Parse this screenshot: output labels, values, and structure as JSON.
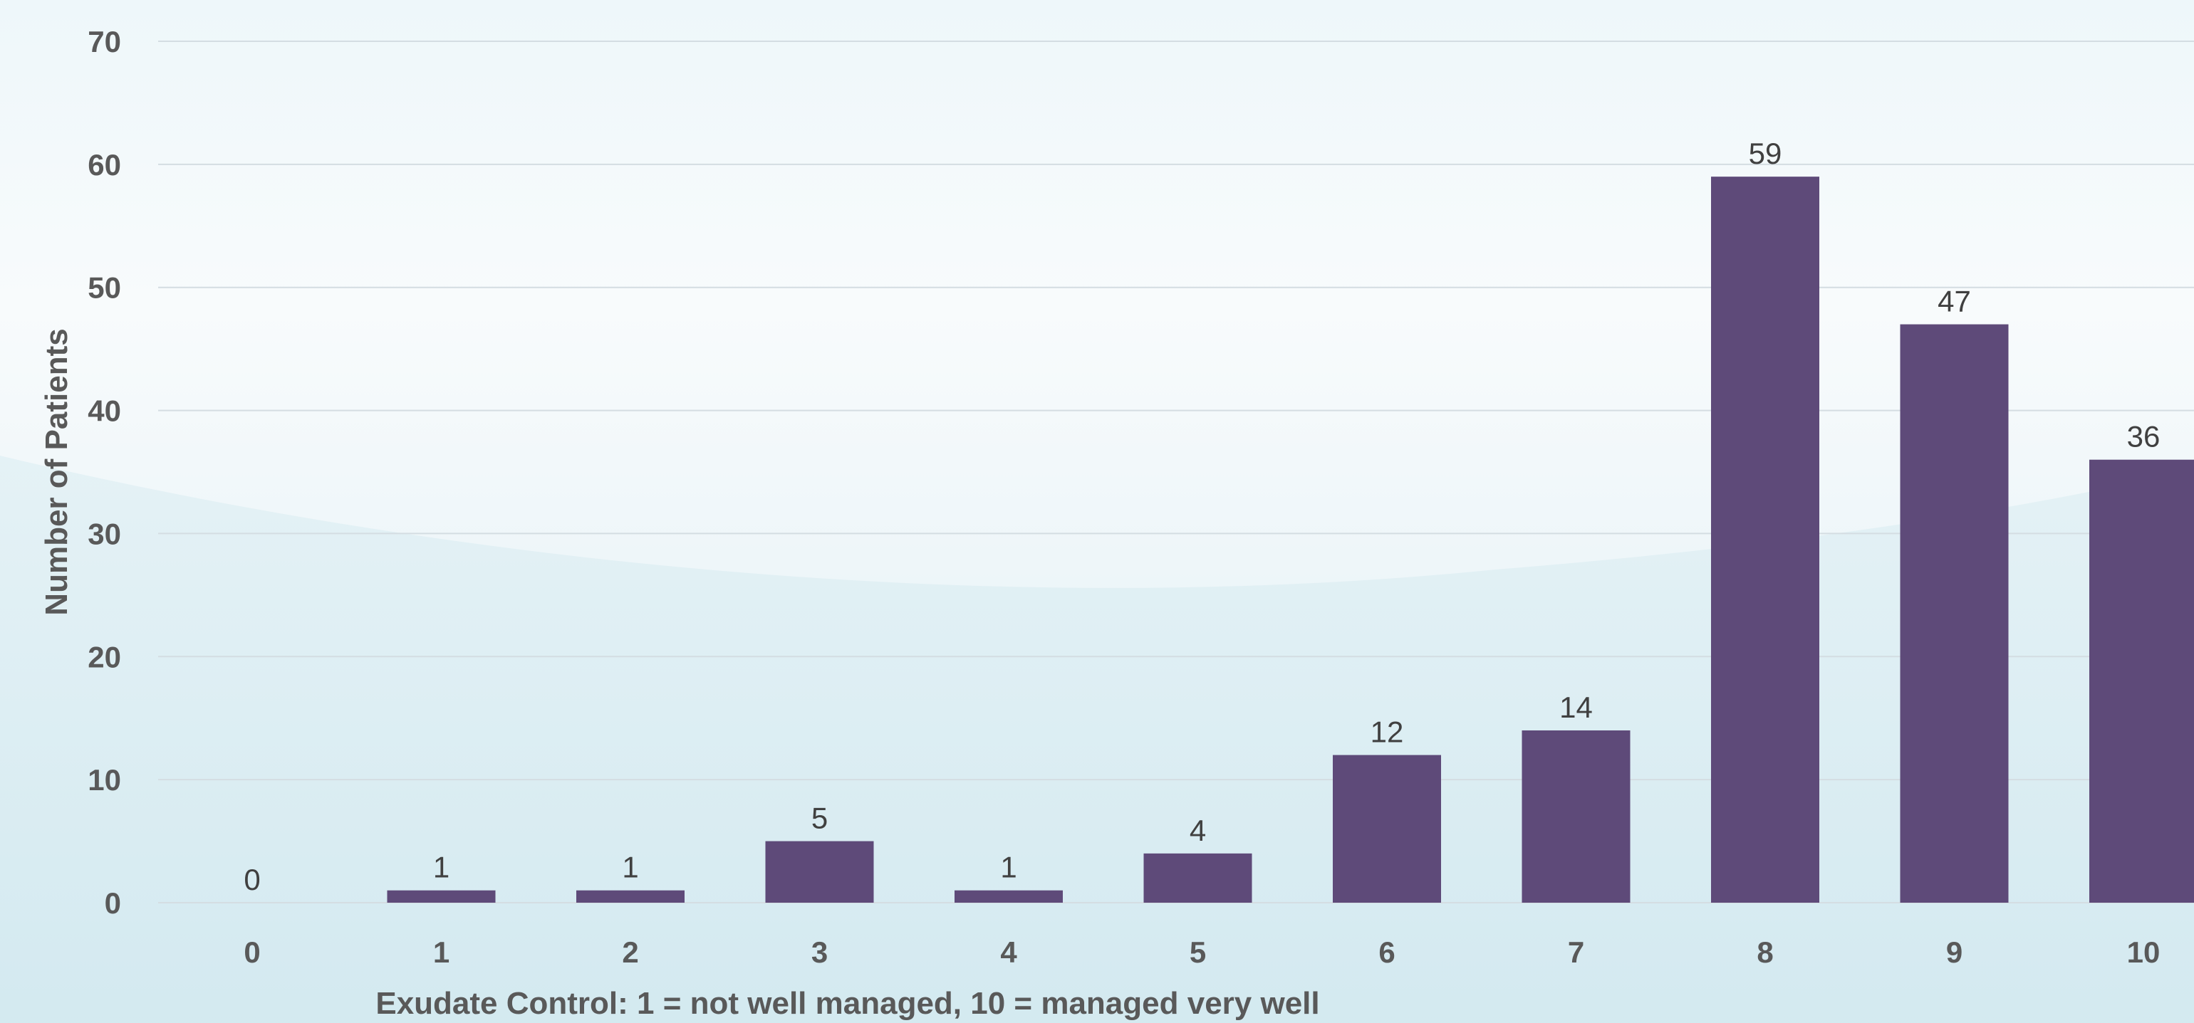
{
  "chart_data": {
    "type": "bar",
    "categories": [
      "0",
      "1",
      "2",
      "3",
      "4",
      "5",
      "6",
      "7",
      "8",
      "9",
      "10"
    ],
    "values": [
      0,
      1,
      1,
      5,
      1,
      4,
      12,
      14,
      59,
      47,
      36
    ],
    "title": "",
    "xlabel": "Exudate Control: 1 = not well managed, 10 = managed very well",
    "ylabel": "Number of Patients",
    "ylim": [
      0,
      70
    ],
    "yticks": [
      0,
      10,
      20,
      30,
      40,
      50,
      60,
      70
    ],
    "grid": true,
    "data_labels": true,
    "bar_color": "#5e4a79"
  }
}
